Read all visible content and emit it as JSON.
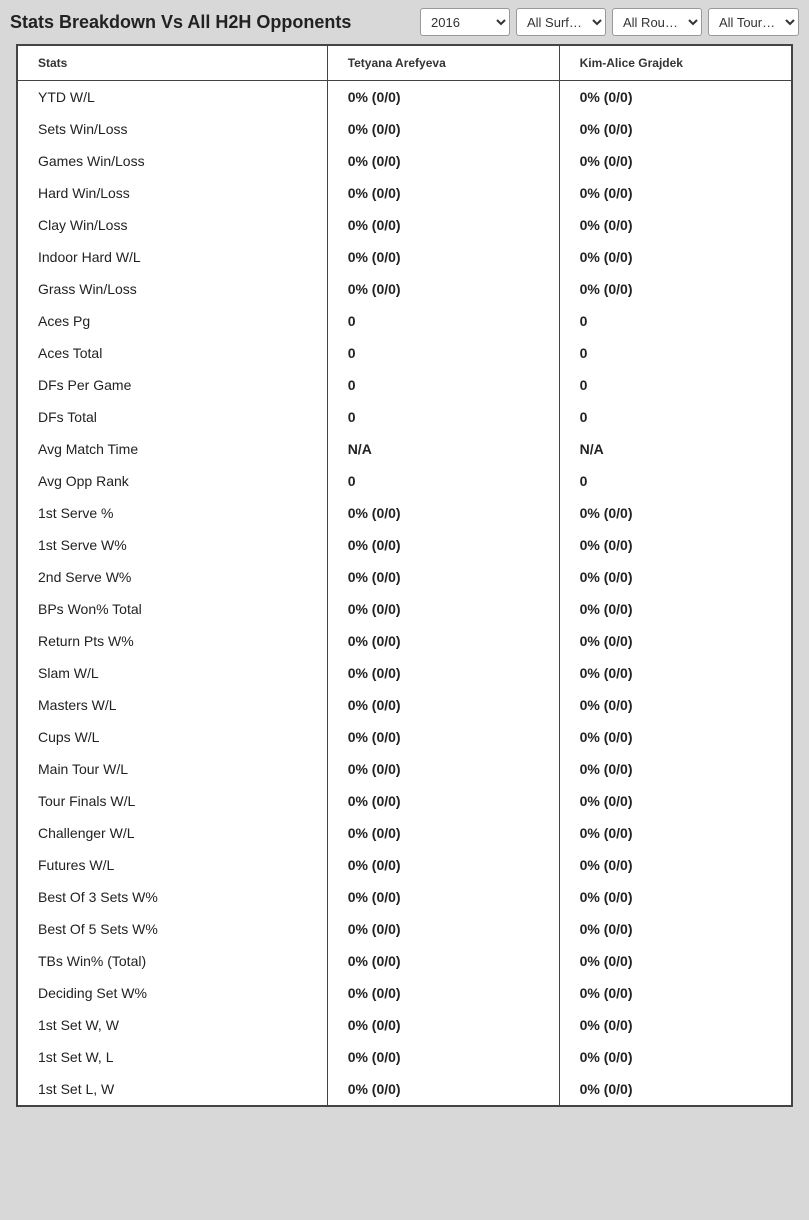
{
  "header": {
    "title": "Stats Breakdown Vs All H2H Opponents"
  },
  "filters": {
    "year": {
      "selected": "2016"
    },
    "surface": {
      "selected": "All Surf…"
    },
    "round": {
      "selected": "All Rou…"
    },
    "tour": {
      "selected": "All Tour…"
    }
  },
  "table": {
    "columns": [
      "Stats",
      "Tetyana Arefyeva",
      "Kim-Alice Grajdek"
    ],
    "rows": [
      {
        "label": "YTD W/L",
        "p1": "0% (0/0)",
        "p2": "0% (0/0)"
      },
      {
        "label": "Sets Win/Loss",
        "p1": "0% (0/0)",
        "p2": "0% (0/0)"
      },
      {
        "label": "Games Win/Loss",
        "p1": "0% (0/0)",
        "p2": "0% (0/0)"
      },
      {
        "label": "Hard Win/Loss",
        "p1": "0% (0/0)",
        "p2": "0% (0/0)"
      },
      {
        "label": "Clay Win/Loss",
        "p1": "0% (0/0)",
        "p2": "0% (0/0)"
      },
      {
        "label": "Indoor Hard W/L",
        "p1": "0% (0/0)",
        "p2": "0% (0/0)"
      },
      {
        "label": "Grass Win/Loss",
        "p1": "0% (0/0)",
        "p2": "0% (0/0)"
      },
      {
        "label": "Aces Pg",
        "p1": "0",
        "p2": "0"
      },
      {
        "label": "Aces Total",
        "p1": "0",
        "p2": "0"
      },
      {
        "label": "DFs Per Game",
        "p1": "0",
        "p2": "0"
      },
      {
        "label": "DFs Total",
        "p1": "0",
        "p2": "0"
      },
      {
        "label": "Avg Match Time",
        "p1": "N/A",
        "p2": "N/A"
      },
      {
        "label": "Avg Opp Rank",
        "p1": "0",
        "p2": "0"
      },
      {
        "label": "1st Serve %",
        "p1": "0% (0/0)",
        "p2": "0% (0/0)"
      },
      {
        "label": "1st Serve W%",
        "p1": "0% (0/0)",
        "p2": "0% (0/0)"
      },
      {
        "label": "2nd Serve W%",
        "p1": "0% (0/0)",
        "p2": "0% (0/0)"
      },
      {
        "label": "BPs Won% Total",
        "p1": "0% (0/0)",
        "p2": "0% (0/0)"
      },
      {
        "label": "Return Pts W%",
        "p1": "0% (0/0)",
        "p2": "0% (0/0)"
      },
      {
        "label": "Slam W/L",
        "p1": "0% (0/0)",
        "p2": "0% (0/0)"
      },
      {
        "label": "Masters W/L",
        "p1": "0% (0/0)",
        "p2": "0% (0/0)"
      },
      {
        "label": "Cups W/L",
        "p1": "0% (0/0)",
        "p2": "0% (0/0)"
      },
      {
        "label": "Main Tour W/L",
        "p1": "0% (0/0)",
        "p2": "0% (0/0)"
      },
      {
        "label": "Tour Finals W/L",
        "p1": "0% (0/0)",
        "p2": "0% (0/0)"
      },
      {
        "label": "Challenger W/L",
        "p1": "0% (0/0)",
        "p2": "0% (0/0)"
      },
      {
        "label": "Futures W/L",
        "p1": "0% (0/0)",
        "p2": "0% (0/0)"
      },
      {
        "label": "Best Of 3 Sets W%",
        "p1": "0% (0/0)",
        "p2": "0% (0/0)"
      },
      {
        "label": "Best Of 5 Sets W%",
        "p1": "0% (0/0)",
        "p2": "0% (0/0)"
      },
      {
        "label": "TBs Win% (Total)",
        "p1": "0% (0/0)",
        "p2": "0% (0/0)"
      },
      {
        "label": "Deciding Set W%",
        "p1": "0% (0/0)",
        "p2": "0% (0/0)"
      },
      {
        "label": "1st Set W, W",
        "p1": "0% (0/0)",
        "p2": "0% (0/0)"
      },
      {
        "label": "1st Set W, L",
        "p1": "0% (0/0)",
        "p2": "0% (0/0)"
      },
      {
        "label": "1st Set L, W",
        "p1": "0% (0/0)",
        "p2": "0% (0/0)"
      }
    ]
  },
  "colors": {
    "background": "#d8d8d8",
    "table_border": "#444444",
    "text": "#222222",
    "header_text": "#333333"
  }
}
